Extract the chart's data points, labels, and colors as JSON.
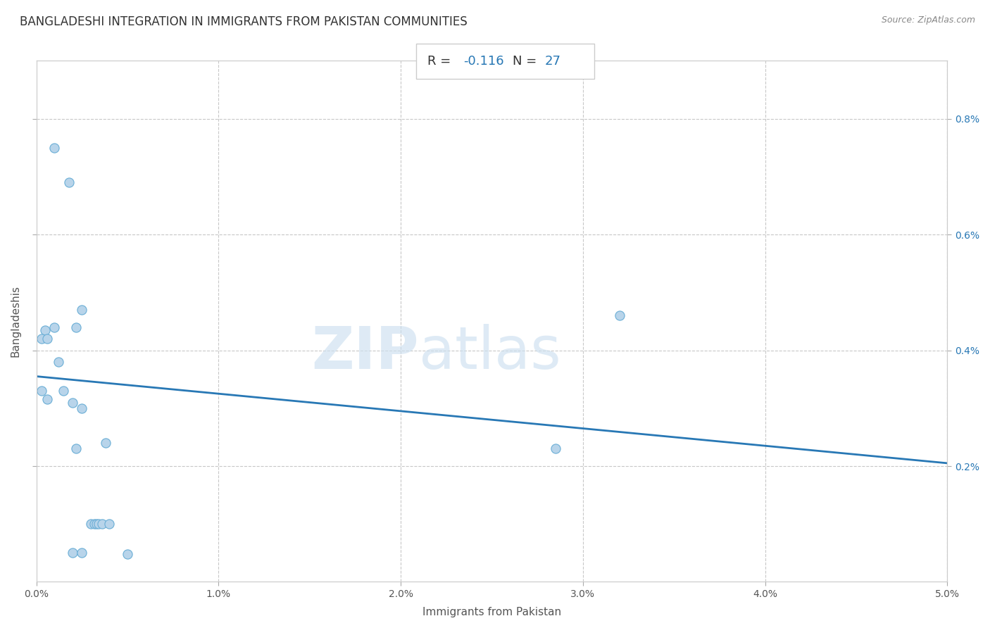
{
  "title": "BANGLADESHI INTEGRATION IN IMMIGRANTS FROM PAKISTAN COMMUNITIES",
  "source": "Source: ZipAtlas.com",
  "xlabel": "Immigrants from Pakistan",
  "ylabel": "Bangladeshis",
  "watermark_zip": "ZIP",
  "watermark_atlas": "atlas",
  "R": -0.116,
  "N": 27,
  "xlim": [
    0.0,
    0.05
  ],
  "ylim": [
    0.0,
    0.009
  ],
  "xticks": [
    0.0,
    0.01,
    0.02,
    0.03,
    0.04,
    0.05
  ],
  "xtick_labels": [
    "0.0%",
    "1.0%",
    "2.0%",
    "3.0%",
    "4.0%",
    "5.0%"
  ],
  "yticks": [
    0.002,
    0.004,
    0.006,
    0.008
  ],
  "ytick_labels": [
    "0.2%",
    "0.4%",
    "0.6%",
    "0.8%"
  ],
  "pts": [
    [
      0.001,
      0.0075
    ],
    [
      0.0018,
      0.0069
    ],
    [
      0.0005,
      0.00435
    ],
    [
      0.0003,
      0.0042
    ],
    [
      0.0006,
      0.0042
    ],
    [
      0.001,
      0.0044
    ],
    [
      0.0022,
      0.0044
    ],
    [
      0.0025,
      0.0047
    ],
    [
      0.0012,
      0.0038
    ],
    [
      0.0003,
      0.0033
    ],
    [
      0.0006,
      0.00315
    ],
    [
      0.0015,
      0.0033
    ],
    [
      0.002,
      0.0031
    ],
    [
      0.0025,
      0.003
    ],
    [
      0.0038,
      0.0024
    ],
    [
      0.0022,
      0.0023
    ],
    [
      0.0285,
      0.0023
    ],
    [
      0.032,
      0.0046
    ],
    [
      0.003,
      0.001
    ],
    [
      0.0032,
      0.001
    ],
    [
      0.0033,
      0.001
    ],
    [
      0.0034,
      0.001
    ],
    [
      0.0036,
      0.001
    ],
    [
      0.004,
      0.001
    ],
    [
      0.002,
      0.0005
    ],
    [
      0.0025,
      0.0005
    ],
    [
      0.005,
      0.00048
    ]
  ],
  "line_x0": 0.0,
  "line_y0": 0.00355,
  "line_x1": 0.05,
  "line_y1": 0.00205,
  "dot_color": "#b8d4ea",
  "dot_edge_color": "#6aaed6",
  "dot_size": 90,
  "line_color": "#2878b5",
  "line_width": 2.0,
  "grid_color": "#c8c8c8",
  "background_color": "#ffffff",
  "title_fontsize": 12,
  "axis_label_fontsize": 11,
  "tick_fontsize": 10,
  "annotation_R_color": "#333333",
  "annotation_N_color": "#2878b5",
  "annotation_fontsize": 13
}
